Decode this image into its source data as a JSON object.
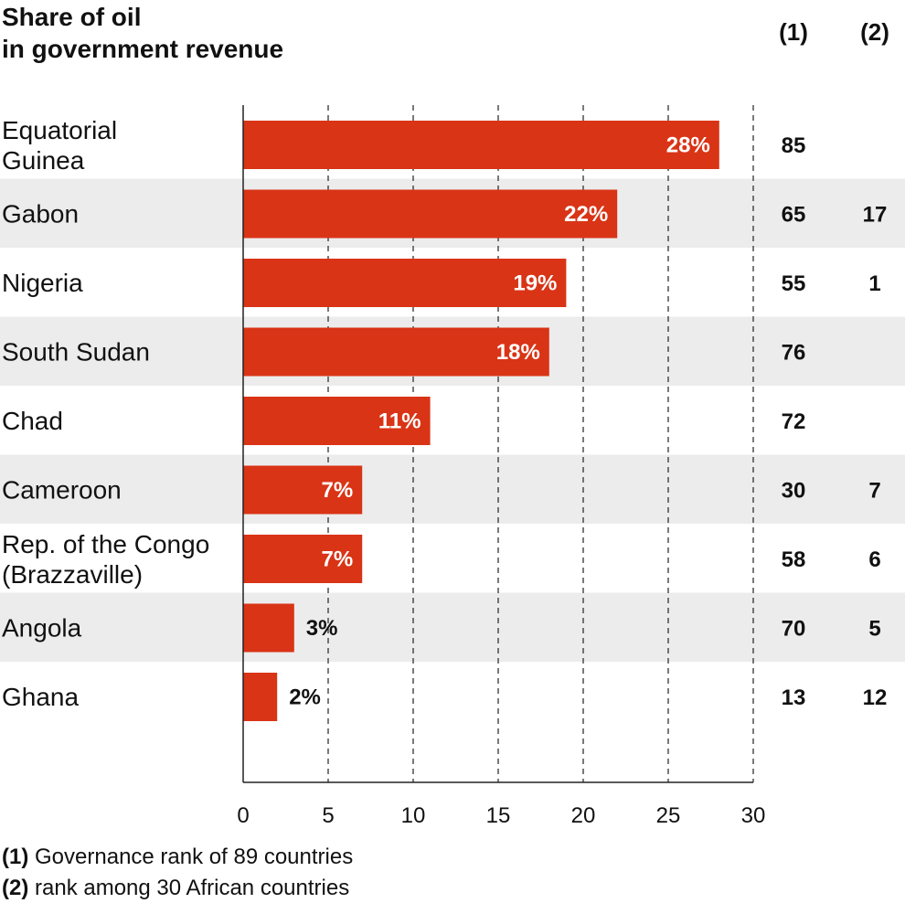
{
  "colors": {
    "bar": "#d93416",
    "stripe": "#ececec",
    "text": "#111111",
    "label_inside": "#ffffff"
  },
  "chart_data": {
    "type": "bar",
    "orientation": "horizontal",
    "title": [
      "Share of oil",
      "in government revenue"
    ],
    "column_headers": [
      "(1)",
      "(2)"
    ],
    "categories": [
      [
        "Equatorial",
        "Guinea"
      ],
      [
        "Gabon"
      ],
      [
        "Nigeria"
      ],
      [
        "South Sudan"
      ],
      [
        "Chad"
      ],
      [
        "Cameroon"
      ],
      [
        "Rep. of the Congo",
        "(Brazzaville)"
      ],
      [
        "Angola"
      ],
      [
        "Ghana"
      ]
    ],
    "values": [
      28,
      22,
      19,
      18,
      11,
      7,
      7,
      3,
      2
    ],
    "value_labels": [
      "28%",
      "22%",
      "19%",
      "18%",
      "11%",
      "7%",
      "7%",
      "3%",
      "2%"
    ],
    "rank_governance": [
      "85",
      "65",
      "55",
      "76",
      "72",
      "30",
      "58",
      "70",
      "13"
    ],
    "rank_africa": [
      "",
      "17",
      "1",
      "",
      "",
      "7",
      "6",
      "5",
      "12"
    ],
    "xlim": [
      0,
      30
    ],
    "xticks": [
      0,
      5,
      10,
      15,
      20,
      25,
      30
    ],
    "grid": "dashed vertical",
    "footnotes": [
      {
        "key": "(1)",
        "text": " Governance rank of 89 countries"
      },
      {
        "key": "(2)",
        "text": " rank among 30 African countries"
      }
    ]
  }
}
